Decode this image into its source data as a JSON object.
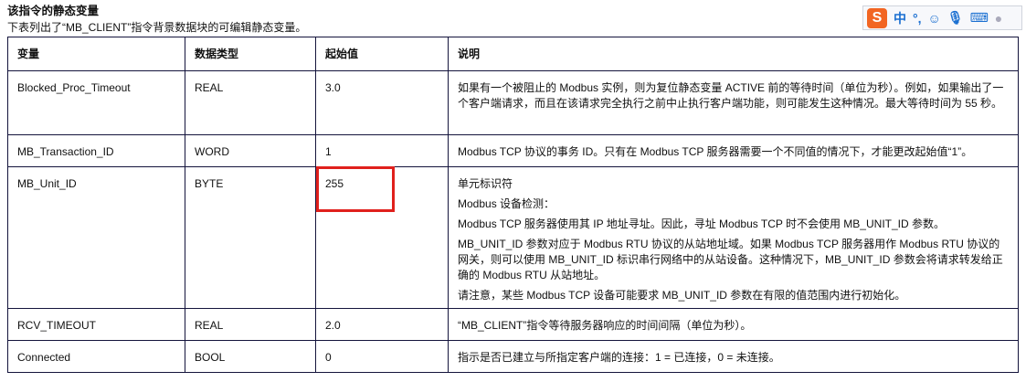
{
  "heading": "该指令的静态变量",
  "subheading": "下表列出了“MB_CLIENT”指令背景数据块的可编辑静态变量。",
  "table": {
    "headers": [
      "变量",
      "数据类型",
      "起始值",
      "说明"
    ],
    "rows": [
      {
        "var": "Blocked_Proc_Timeout",
        "type": "REAL",
        "start": "3.0",
        "desc": [
          "如果有一个被阻止的 Modbus 实例，则为复位静态变量 ACTIVE 前的等待时间（单位为秒）。例如，如果输出了一个客户端请求，而且在该请求完全执行之前中止执行客户端功能，则可能发生这种情况。最大等待时间为 55 秒。"
        ]
      },
      {
        "var": "MB_Transaction_ID",
        "type": "WORD",
        "start": "1",
        "desc": [
          "Modbus TCP 协议的事务 ID。只有在 Modbus TCP 服务器需要一个不同值的情况下，才能更改起始值“1”。"
        ]
      },
      {
        "var": "MB_Unit_ID",
        "type": "BYTE",
        "start": "255",
        "desc": [
          "单元标识符",
          "Modbus 设备检测：",
          "Modbus TCP 服务器使用其 IP 地址寻址。因此，寻址 Modbus TCP 时不会使用 MB_UNIT_ID 参数。",
          "MB_UNIT_ID 参数对应于 Modbus RTU 协议的从站地址域。如果 Modbus TCP 服务器用作 Modbus RTU 协议的网关，则可以使用 MB_UNIT_ID 标识串行网络中的从站设备。这种情况下，MB_UNIT_ID 参数会将请求转发给正确的 Modbus RTU 从站地址。",
          "请注意，某些 Modbus TCP 设备可能要求 MB_UNIT_ID 参数在有限的值范围内进行初始化。"
        ]
      },
      {
        "var": "RCV_TIMEOUT",
        "type": "REAL",
        "start": "2.0",
        "desc": [
          "“MB_CLIENT”指令等待服务器响应的时间间隔（单位为秒）。"
        ]
      },
      {
        "var": "Connected",
        "type": "BOOL",
        "start": "0",
        "desc": [
          "指示是否已建立与所指定客户端的连接：1 = 已连接，0 = 未连接。"
        ]
      }
    ]
  },
  "highlight_color": "#e0201c",
  "ime_toolbar": {
    "logo": "S",
    "mode": "中",
    "punct": "°,",
    "icons": [
      "emoji-icon",
      "microphone-icon",
      "keyboard-icon",
      "user-icon"
    ]
  }
}
